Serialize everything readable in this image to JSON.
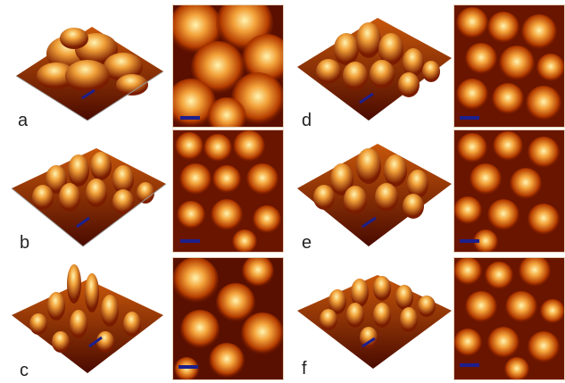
{
  "panels": {
    "a": {
      "label": "a"
    },
    "b": {
      "label": "b"
    },
    "c": {
      "label": "c"
    },
    "d": {
      "label": "d"
    },
    "e": {
      "label": "e"
    },
    "f": {
      "label": "f"
    }
  },
  "colors": {
    "dark": "#3a0500",
    "mid": "#b23b00",
    "bright": "#f2a13a",
    "highlight": "#fff2a8",
    "scalebar": "#1c1f8c"
  }
}
